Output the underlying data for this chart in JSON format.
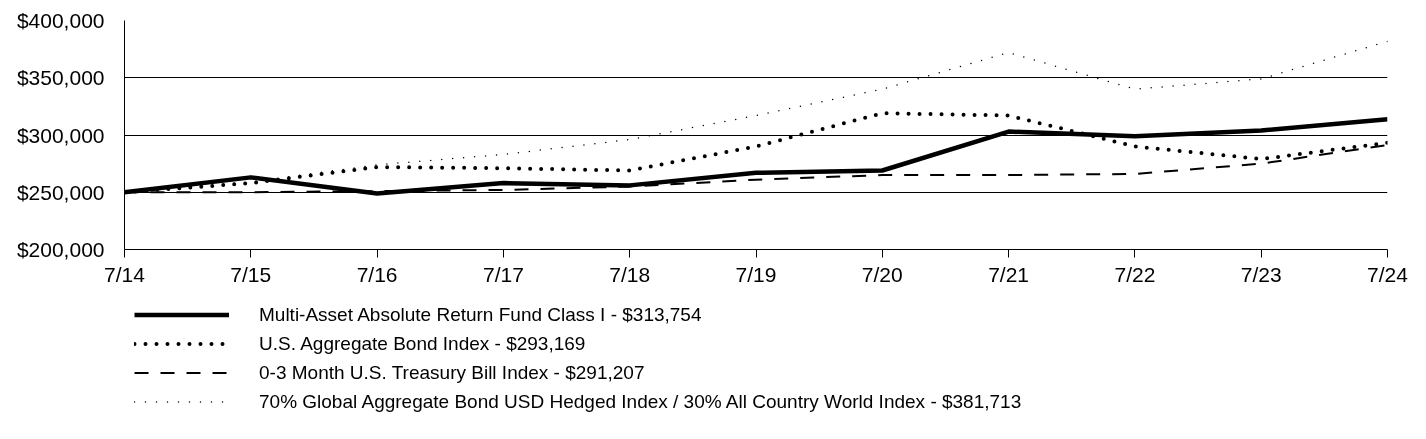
{
  "chart_data": {
    "type": "line",
    "categories": [
      "7/14",
      "7/15",
      "7/16",
      "7/17",
      "7/18",
      "7/19",
      "7/20",
      "7/21",
      "7/22",
      "7/23",
      "7/24"
    ],
    "ylim": [
      200000,
      400000
    ],
    "yticks": [
      {
        "value": 200000,
        "label": "$200,000"
      },
      {
        "value": 250000,
        "label": "$250,000"
      },
      {
        "value": 300000,
        "label": "$300,000"
      },
      {
        "value": 350000,
        "label": "$350,000"
      },
      {
        "value": 400000,
        "label": "$400,000"
      }
    ],
    "grid": "y",
    "legend": "bottom",
    "series": [
      {
        "name": "Multi-Asset Absolute Return Fund Class I - $313,754",
        "color": "#000000",
        "line_style": "solid",
        "values": [
          250000,
          263000,
          249000,
          258000,
          256000,
          267000,
          269000,
          303000,
          299000,
          304000,
          313754
        ]
      },
      {
        "name": "U.S. Aggregate Bond Index - $293,169",
        "color": "#000000",
        "line_style": "dotted",
        "values": [
          250000,
          258000,
          272000,
          271000,
          269000,
          290000,
          319000,
          317000,
          290000,
          279000,
          293169
        ]
      },
      {
        "name": "0-3 Month U.S. Treasury Bill Index - $291,207",
        "color": "#000000",
        "line_style": "dashed",
        "values": [
          250000,
          250000,
          251000,
          252000,
          255000,
          261000,
          265000,
          265000,
          266000,
          275000,
          291207
        ]
      },
      {
        "name": "70% Global Aggregate Bond USD Hedged Index / 30% All Country World Index - $381,713",
        "color": "#000000",
        "line_style": "dotted",
        "values": [
          250000,
          259000,
          274000,
          283000,
          296000,
          317000,
          340000,
          372000,
          340000,
          349000,
          381713
        ]
      }
    ]
  }
}
